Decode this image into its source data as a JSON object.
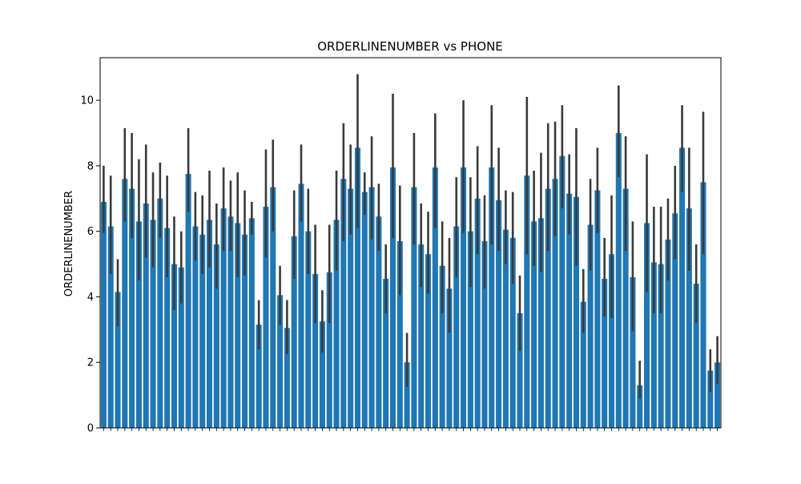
{
  "chart_data": {
    "type": "bar",
    "title": "ORDERLINENUMBER vs PHONE",
    "xlabel": "",
    "ylabel": "ORDERLINENUMBER",
    "ylim": [
      0,
      11.3
    ],
    "yticks": [
      0,
      2,
      4,
      6,
      8,
      10
    ],
    "bar_color": "#1f77b4",
    "errorbar_color": "#3a3a3a",
    "values": [
      6.9,
      6.15,
      4.15,
      7.6,
      7.3,
      6.3,
      6.85,
      6.35,
      7.0,
      6.1,
      5.0,
      4.9,
      7.75,
      6.15,
      5.9,
      6.35,
      5.6,
      6.7,
      6.45,
      6.25,
      5.9,
      6.4,
      3.15,
      6.75,
      7.35,
      4.05,
      3.05,
      5.85,
      7.45,
      6.0,
      4.7,
      3.25,
      4.75,
      6.35,
      7.6,
      7.3,
      8.55,
      7.2,
      7.35,
      6.45,
      4.55,
      7.95,
      5.7,
      2.0,
      7.35,
      5.6,
      5.3,
      7.95,
      4.95,
      4.25,
      6.15,
      7.95,
      6.0,
      7.0,
      5.7,
      7.95,
      6.95,
      6.05,
      5.8,
      3.5,
      7.7,
      6.3,
      6.4,
      7.3,
      7.6,
      8.3,
      7.15,
      7.05,
      3.85,
      6.2,
      7.25,
      4.55,
      5.3,
      9.0,
      7.3,
      4.6,
      1.3,
      6.25,
      5.05,
      5.0,
      5.75,
      6.55,
      8.55,
      6.7,
      4.4,
      7.5,
      1.75,
      2.0
    ],
    "error_low": [
      5.95,
      4.7,
      3.1,
      6.3,
      5.8,
      4.5,
      5.2,
      4.9,
      5.8,
      4.6,
      3.6,
      3.8,
      6.6,
      5.1,
      4.7,
      4.9,
      4.25,
      5.4,
      5.4,
      4.6,
      4.65,
      5.9,
      2.4,
      5.2,
      6.0,
      3.15,
      2.25,
      4.55,
      6.3,
      4.7,
      3.2,
      2.3,
      3.2,
      4.8,
      5.7,
      5.9,
      6.1,
      6.5,
      5.75,
      5.4,
      3.5,
      5.8,
      4.05,
      1.25,
      5.6,
      4.3,
      4.1,
      6.1,
      3.5,
      2.9,
      4.6,
      5.95,
      4.3,
      5.3,
      4.25,
      5.6,
      5.4,
      5.0,
      4.4,
      2.35,
      5.3,
      4.95,
      4.75,
      5.4,
      5.85,
      6.7,
      5.9,
      4.95,
      2.9,
      4.8,
      5.95,
      3.4,
      3.35,
      7.65,
      5.4,
      2.95,
      0.9,
      4.15,
      3.5,
      3.5,
      4.5,
      5.15,
      7.2,
      4.8,
      3.2,
      5.3,
      1.1,
      1.35
    ],
    "error_high": [
      8.0,
      7.7,
      5.15,
      9.15,
      9.0,
      8.2,
      8.65,
      7.8,
      8.1,
      7.7,
      6.45,
      6.0,
      9.15,
      7.2,
      7.1,
      7.85,
      6.85,
      7.95,
      7.55,
      7.8,
      7.25,
      6.9,
      3.9,
      8.5,
      8.8,
      4.95,
      3.9,
      7.25,
      8.65,
      7.3,
      6.2,
      4.2,
      6.2,
      7.85,
      9.3,
      8.65,
      10.8,
      7.8,
      8.9,
      7.45,
      5.6,
      10.2,
      7.4,
      2.9,
      9.0,
      6.85,
      6.6,
      9.6,
      6.3,
      5.8,
      7.65,
      10.0,
      7.65,
      8.6,
      7.1,
      9.85,
      8.55,
      7.25,
      7.2,
      4.65,
      10.1,
      7.85,
      8.4,
      9.3,
      9.35,
      9.85,
      8.35,
      9.15,
      4.85,
      7.6,
      8.55,
      5.8,
      7.1,
      10.45,
      8.9,
      6.3,
      2.05,
      8.35,
      6.75,
      6.75,
      7.0,
      8.0,
      9.85,
      8.55,
      5.6,
      9.65,
      2.4,
      2.8
    ]
  }
}
